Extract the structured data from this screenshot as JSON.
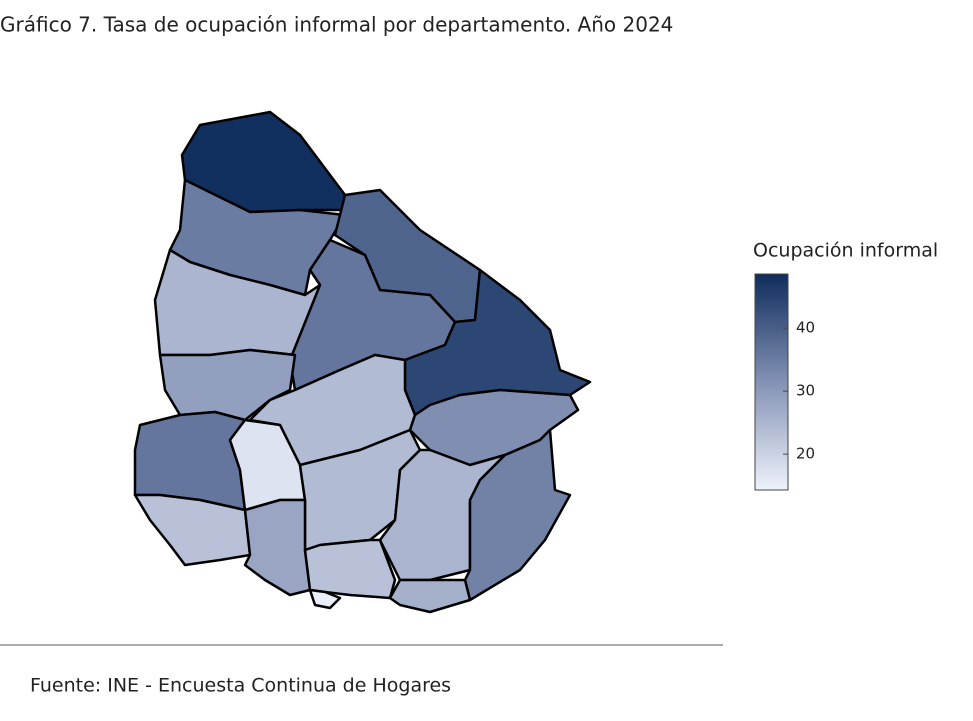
{
  "chart_data": {
    "type": "choropleth",
    "title": "Gráfico 7. Tasa de ocupación informal por departamento. Año 2024",
    "legend_title": "Ocupación informal",
    "values": [
      48,
      35,
      39,
      25,
      36,
      44,
      29,
      24,
      32,
      36,
      17,
      24,
      25,
      34,
      23,
      28,
      23,
      26,
      15
    ],
    "colorscale": [
      [
        0,
        "#eef2fb"
      ],
      [
        0.5,
        "#8391b4"
      ],
      [
        1,
        "#0e2c5c"
      ]
    ],
    "clim": [
      14.3,
      48.6
    ],
    "cticks": [
      20,
      30,
      40
    ]
  },
  "source": "Fuente: INE - Encuesta Continua de Hogares"
}
